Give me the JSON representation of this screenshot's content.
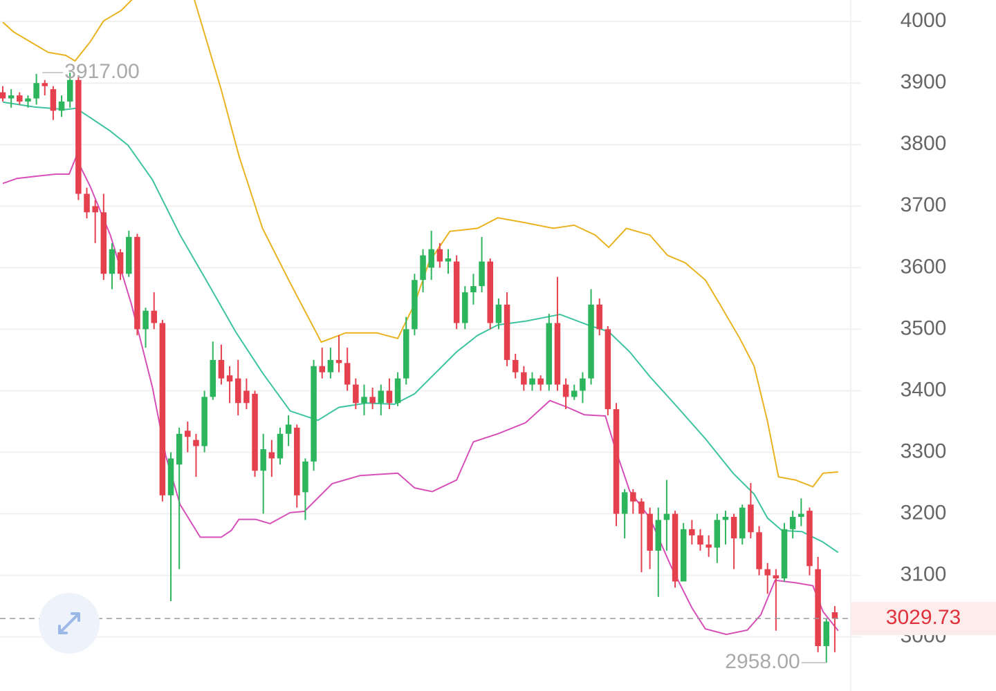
{
  "chart_data": {
    "type": "candlestick",
    "ylim": [
      2912,
      4035
    ],
    "xlim": [
      -0.33,
      100.9
    ],
    "yticks": [
      3000,
      3100,
      3200,
      3300,
      3400,
      3500,
      3600,
      3700,
      3800,
      3900,
      4000
    ],
    "grid": true,
    "up_color": "#2db55d",
    "down_color": "#e5404d",
    "ohlc": [
      [
        3885,
        3895,
        3870,
        3875
      ],
      [
        3875,
        3890,
        3860,
        3880
      ],
      [
        3880,
        3885,
        3865,
        3870
      ],
      [
        3870,
        3880,
        3860,
        3875
      ],
      [
        3875,
        3915,
        3865,
        3900
      ],
      [
        3900,
        3905,
        3880,
        3895
      ],
      [
        3890,
        3895,
        3840,
        3855
      ],
      [
        3855,
        3880,
        3845,
        3870
      ],
      [
        3870,
        3917,
        3860,
        3905
      ],
      [
        3905,
        3910,
        3710,
        3720
      ],
      [
        3720,
        3730,
        3680,
        3690
      ],
      [
        3700,
        3710,
        3640,
        3690
      ],
      [
        3690,
        3720,
        3580,
        3590
      ],
      [
        3590,
        3640,
        3565,
        3630
      ],
      [
        3625,
        3630,
        3580,
        3590
      ],
      [
        3590,
        3660,
        3585,
        3650
      ],
      [
        3650,
        3655,
        3490,
        3500
      ],
      [
        3500,
        3535,
        3470,
        3530
      ],
      [
        3530,
        3560,
        3500,
        3510
      ],
      [
        3510,
        3515,
        3220,
        3230
      ],
      [
        3230,
        3300,
        3058,
        3290
      ],
      [
        3280,
        3340,
        3110,
        3330
      ],
      [
        3335,
        3350,
        3300,
        3325
      ],
      [
        3320,
        3330,
        3260,
        3310
      ],
      [
        3310,
        3400,
        3300,
        3390
      ],
      [
        3390,
        3480,
        3385,
        3450
      ],
      [
        3450,
        3475,
        3410,
        3420
      ],
      [
        3425,
        3440,
        3380,
        3415
      ],
      [
        3420,
        3450,
        3360,
        3380
      ],
      [
        3400,
        3420,
        3370,
        3380
      ],
      [
        3395,
        3400,
        3260,
        3270
      ],
      [
        3270,
        3330,
        3200,
        3305
      ],
      [
        3300,
        3320,
        3260,
        3290
      ],
      [
        3290,
        3340,
        3280,
        3330
      ],
      [
        3330,
        3360,
        3310,
        3345
      ],
      [
        3340,
        3345,
        3210,
        3230
      ],
      [
        3235,
        3290,
        3190,
        3285
      ],
      [
        3285,
        3450,
        3270,
        3440
      ],
      [
        3440,
        3470,
        3420,
        3430
      ],
      [
        3430,
        3470,
        3420,
        3450
      ],
      [
        3450,
        3490,
        3430,
        3445
      ],
      [
        3445,
        3470,
        3400,
        3410
      ],
      [
        3410,
        3420,
        3370,
        3380
      ],
      [
        3380,
        3410,
        3360,
        3390
      ],
      [
        3390,
        3405,
        3370,
        3380
      ],
      [
        3380,
        3410,
        3360,
        3400
      ],
      [
        3400,
        3420,
        3370,
        3380
      ],
      [
        3380,
        3430,
        3375,
        3420
      ],
      [
        3420,
        3520,
        3410,
        3500
      ],
      [
        3500,
        3590,
        3490,
        3580
      ],
      [
        3580,
        3630,
        3560,
        3620
      ],
      [
        3600,
        3660,
        3580,
        3630
      ],
      [
        3630,
        3640,
        3600,
        3610
      ],
      [
        3610,
        3630,
        3590,
        3615
      ],
      [
        3610,
        3620,
        3500,
        3510
      ],
      [
        3510,
        3570,
        3500,
        3560
      ],
      [
        3560,
        3590,
        3540,
        3570
      ],
      [
        3570,
        3650,
        3560,
        3610
      ],
      [
        3610,
        3615,
        3500,
        3510
      ],
      [
        3510,
        3550,
        3500,
        3540
      ],
      [
        3540,
        3560,
        3440,
        3450
      ],
      [
        3450,
        3460,
        3420,
        3430
      ],
      [
        3430,
        3440,
        3400,
        3410
      ],
      [
        3410,
        3430,
        3400,
        3420
      ],
      [
        3420,
        3425,
        3400,
        3410
      ],
      [
        3410,
        3525,
        3400,
        3510
      ],
      [
        3510,
        3585,
        3400,
        3410
      ],
      [
        3410,
        3420,
        3370,
        3390
      ],
      [
        3390,
        3410,
        3385,
        3400
      ],
      [
        3400,
        3430,
        3380,
        3420
      ],
      [
        3420,
        3565,
        3410,
        3540
      ],
      [
        3540,
        3550,
        3490,
        3500
      ],
      [
        3500,
        3505,
        3360,
        3370
      ],
      [
        3370,
        3380,
        3180,
        3200
      ],
      [
        3200,
        3240,
        3160,
        3235
      ],
      [
        3235,
        3240,
        3200,
        3220
      ],
      [
        3220,
        3225,
        3105,
        3200
      ],
      [
        3200,
        3210,
        3110,
        3140
      ],
      [
        3140,
        3210,
        3065,
        3190
      ],
      [
        3190,
        3255,
        3140,
        3200
      ],
      [
        3200,
        3205,
        3080,
        3090
      ],
      [
        3090,
        3185,
        3090,
        3175
      ],
      [
        3175,
        3190,
        3150,
        3165
      ],
      [
        3165,
        3175,
        3140,
        3150
      ],
      [
        3150,
        3165,
        3130,
        3145
      ],
      [
        3145,
        3200,
        3120,
        3190
      ],
      [
        3190,
        3205,
        3150,
        3195
      ],
      [
        3195,
        3200,
        3110,
        3160
      ],
      [
        3160,
        3215,
        3150,
        3210
      ],
      [
        3215,
        3250,
        3160,
        3170
      ],
      [
        3170,
        3180,
        3100,
        3110
      ],
      [
        3110,
        3120,
        3070,
        3100
      ],
      [
        3100,
        3110,
        3010,
        3095
      ],
      [
        3095,
        3185,
        3090,
        3175
      ],
      [
        3175,
        3205,
        3160,
        3195
      ],
      [
        3195,
        3225,
        3180,
        3200
      ],
      [
        3205,
        3210,
        3100,
        3115
      ],
      [
        3110,
        3130,
        2975,
        2985
      ],
      [
        2985,
        3030,
        2958,
        3025
      ],
      [
        3040,
        3050,
        2975,
        3029.73
      ]
    ],
    "bands": [
      {
        "color": "#e9b320",
        "x": [
          0,
          1.3,
          3.4,
          5.4,
          7.5,
          8.6,
          10.4,
          12,
          14.1,
          15.7,
          22.7,
          26,
          28.1,
          30.9,
          34.2,
          37.9,
          40.8,
          44.5,
          47,
          49,
          50.7,
          53.2,
          56.5,
          58.9,
          62.2,
          65.5,
          68,
          70.5,
          72.1,
          74.2,
          77,
          79.1,
          81.2,
          83.6,
          85.3,
          87.7,
          89.4,
          91,
          92.3,
          94.3,
          96.4,
          97.6,
          99.4
        ],
        "values": [
          3999,
          3983,
          3966,
          3950,
          3945,
          3936,
          3967,
          4001,
          4018,
          4040,
          4040,
          3889,
          3782,
          3664,
          3575,
          3479,
          3494,
          3494,
          3485,
          3541,
          3608,
          3659,
          3664,
          3681,
          3673,
          3664,
          3669,
          3653,
          3633,
          3664,
          3653,
          3620,
          3608,
          3580,
          3541,
          3485,
          3440,
          3350,
          3260,
          3255,
          3244,
          3266,
          3268
        ]
      },
      {
        "color": "#3cc3a0",
        "x": [
          0,
          3.8,
          7.5,
          8.7,
          10.4,
          12.8,
          14.9,
          17.8,
          21.1,
          24.4,
          27.7,
          30.9,
          34.2,
          37.5,
          40,
          43.3,
          46.6,
          49,
          51.5,
          54,
          56.5,
          58.9,
          62.2,
          66.3,
          69.6,
          72.1,
          74.6,
          77,
          80.3,
          83.6,
          86.9,
          89.4,
          91,
          92.7,
          95.1,
          97.6,
          99.4
        ],
        "values": [
          3869,
          3861,
          3857,
          3859,
          3844,
          3822,
          3799,
          3743,
          3653,
          3575,
          3496,
          3429,
          3367,
          3352,
          3373,
          3380,
          3378,
          3395,
          3429,
          3463,
          3490,
          3507,
          3513,
          3524,
          3507,
          3496,
          3463,
          3423,
          3373,
          3322,
          3266,
          3232,
          3193,
          3173,
          3171,
          3154,
          3137
        ]
      },
      {
        "color": "#d64fb8",
        "x": [
          0,
          1.7,
          4.2,
          6.3,
          7.9,
          8.7,
          10.4,
          12.8,
          15.3,
          17.8,
          19.4,
          21.1,
          23.5,
          26,
          27.2,
          28.1,
          30.1,
          31.8,
          34.2,
          35.9,
          39.2,
          42.5,
          47,
          49,
          51.1,
          54,
          56,
          58.9,
          62.2,
          65.1,
          67.2,
          69.2,
          71.7,
          72.9,
          74.6,
          77,
          79.5,
          82,
          83.6,
          86.1,
          88.6,
          90.2,
          91.9,
          94.3,
          96.4,
          97.6,
          99.4
        ],
        "values": [
          3737,
          3745,
          3749,
          3752,
          3752,
          3779,
          3732,
          3653,
          3541,
          3406,
          3294,
          3215,
          3162,
          3162,
          3173,
          3191,
          3191,
          3184,
          3202,
          3204,
          3249,
          3262,
          3266,
          3242,
          3236,
          3255,
          3317,
          3330,
          3348,
          3384,
          3373,
          3361,
          3359,
          3305,
          3237,
          3193,
          3115,
          3047,
          3013,
          3004,
          3011,
          3036,
          3092,
          3088,
          3083,
          3041,
          3010
        ]
      }
    ],
    "high_marker": {
      "value": 3917,
      "label": "3917.00"
    },
    "low_marker": {
      "value": 2958,
      "label": "2958.00"
    },
    "last_price": 3029.73
  }
}
